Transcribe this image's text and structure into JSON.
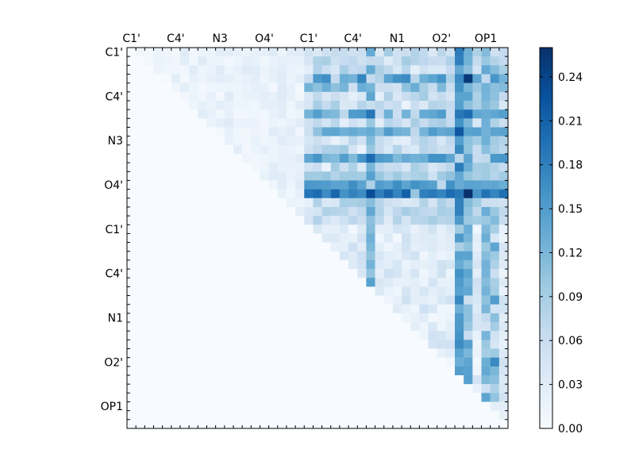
{
  "chart_data": {
    "type": "heatmap",
    "colormap": "Blues",
    "matrix_size": 43,
    "x_tick_labels": [
      "C1'",
      "C4'",
      "N3",
      "O4'",
      "C1'",
      "C4'",
      "N1",
      "O2'",
      "OP1"
    ],
    "y_tick_labels": [
      "C1'",
      "C4'",
      "N3",
      "O4'",
      "C1'",
      "C4'",
      "N1",
      "O2'",
      "OP1"
    ],
    "labeled_tick_rows": [
      0,
      5,
      10,
      15,
      20,
      25,
      30,
      35,
      40
    ],
    "colorbar": {
      "min": 0.0,
      "max": 0.26,
      "ticks": [
        0.0,
        0.03,
        0.06,
        0.09,
        0.12,
        0.15,
        0.18,
        0.21,
        0.24
      ],
      "tick_labels": [
        "0.00",
        "0.03",
        "0.06",
        "0.09",
        "0.12",
        "0.15",
        "0.18",
        "0.21",
        "0.24"
      ]
    },
    "grid": false,
    "legend": "colorbar right",
    "hot_rows": {
      "3": 0.16,
      "4": 0.12,
      "7": 0.15,
      "9": 0.14,
      "12": 0.15,
      "14": 0.1,
      "15": 0.16,
      "16": 0.2
    },
    "hot_cols": {
      "27": 0.14,
      "37": 0.18,
      "38": 0.14,
      "40": 0.13,
      "41": 0.11
    },
    "peak_cells": [
      {
        "row": 3,
        "col": 38,
        "value": 0.25
      },
      {
        "row": 16,
        "col": 27,
        "value": 0.23
      },
      {
        "row": 16,
        "col": 38,
        "value": 0.26
      },
      {
        "row": 9,
        "col": 37,
        "value": 0.22
      },
      {
        "row": 12,
        "col": 27,
        "value": 0.2
      },
      {
        "row": 7,
        "col": 27,
        "value": 0.19
      },
      {
        "row": 7,
        "col": 38,
        "value": 0.2
      },
      {
        "row": 1,
        "col": 37,
        "value": 0.18
      },
      {
        "row": 22,
        "col": 41,
        "value": 0.14
      },
      {
        "row": 28,
        "col": 41,
        "value": 0.15
      },
      {
        "row": 35,
        "col": 41,
        "value": 0.17
      },
      {
        "row": 36,
        "col": 41,
        "value": 0.12
      },
      {
        "row": 39,
        "col": 40,
        "value": 0.14
      }
    ]
  }
}
